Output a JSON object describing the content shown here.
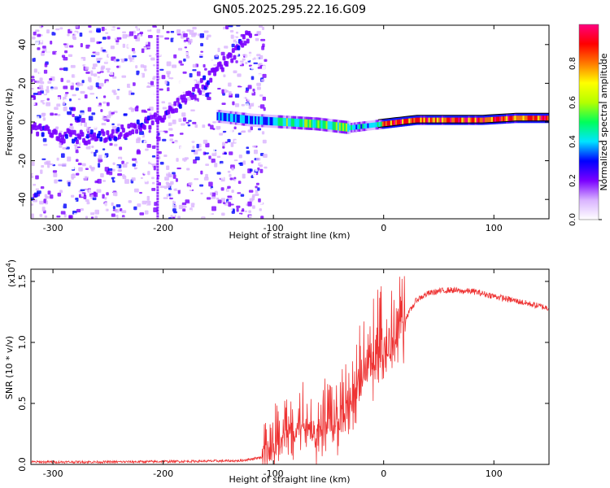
{
  "title": "GN05.2025.295.22.16.G09",
  "chart_data": [
    {
      "type": "heatmap",
      "name": "spectrogram",
      "xlabel": "Height of straight line (km)",
      "ylabel": "Frequency (Hz)",
      "xlim": [
        -320,
        150
      ],
      "ylim": [
        -50,
        50
      ],
      "xticks": [
        -300,
        -200,
        -100,
        0,
        100
      ],
      "yticks": [
        -40,
        -20,
        0,
        20,
        40
      ],
      "colorbar": {
        "label": "Normalized spectral amplitude",
        "range": [
          0,
          1
        ],
        "ticks": [
          "0.0",
          "0.2",
          "0.4",
          "0.6",
          "0.8"
        ],
        "colormap": [
          "#ffffff",
          "#d9b3ff",
          "#7a00ff",
          "#0000ff",
          "#00e5ff",
          "#00ff5a",
          "#b4ff00",
          "#ffff00",
          "#ff7a00",
          "#ff0000",
          "#ff007f"
        ]
      },
      "features": [
        {
          "name": "dominant-line",
          "height_range": [
            -150,
            150
          ],
          "frequency_hz": [
            3,
            1,
            0,
            -1,
            -3,
            -1,
            1,
            1,
            1,
            2,
            2
          ]
        },
        {
          "name": "curved-arc",
          "height_range": [
            -320,
            -90
          ],
          "frequency_hz": "quadratic, min ~ -8 Hz near -270 km, +45 Hz near -140 km"
        }
      ]
    },
    {
      "type": "line",
      "name": "snr",
      "xlabel": "Height of straight line (km)",
      "ylabel": "SNR (10 * v/v)",
      "scale_label": "(x10",
      "scale_exponent": "4",
      "xlim": [
        -320,
        150
      ],
      "ylim": [
        0,
        1.6
      ],
      "xticks": [
        -300,
        -200,
        -100,
        0,
        100
      ],
      "yticks": [
        "0.0",
        "0.5",
        "1.0",
        "1.5"
      ],
      "series": [
        {
          "name": "SNR",
          "color": "#ee3333",
          "x": [
            -320,
            -250,
            -180,
            -130,
            -110,
            -100,
            -90,
            -80,
            -70,
            -60,
            -50,
            -40,
            -30,
            -20,
            -10,
            0,
            10,
            20,
            30,
            40,
            50,
            60,
            70,
            80,
            90,
            100,
            110,
            120,
            130,
            140,
            150
          ],
          "y": [
            0.02,
            0.02,
            0.025,
            0.03,
            0.06,
            0.1,
            0.2,
            0.3,
            0.32,
            0.2,
            0.3,
            0.3,
            0.45,
            0.65,
            0.8,
            0.9,
            1.0,
            1.2,
            1.35,
            1.4,
            1.42,
            1.43,
            1.42,
            1.42,
            1.4,
            1.38,
            1.36,
            1.34,
            1.32,
            1.3,
            1.28
          ]
        }
      ]
    }
  ]
}
